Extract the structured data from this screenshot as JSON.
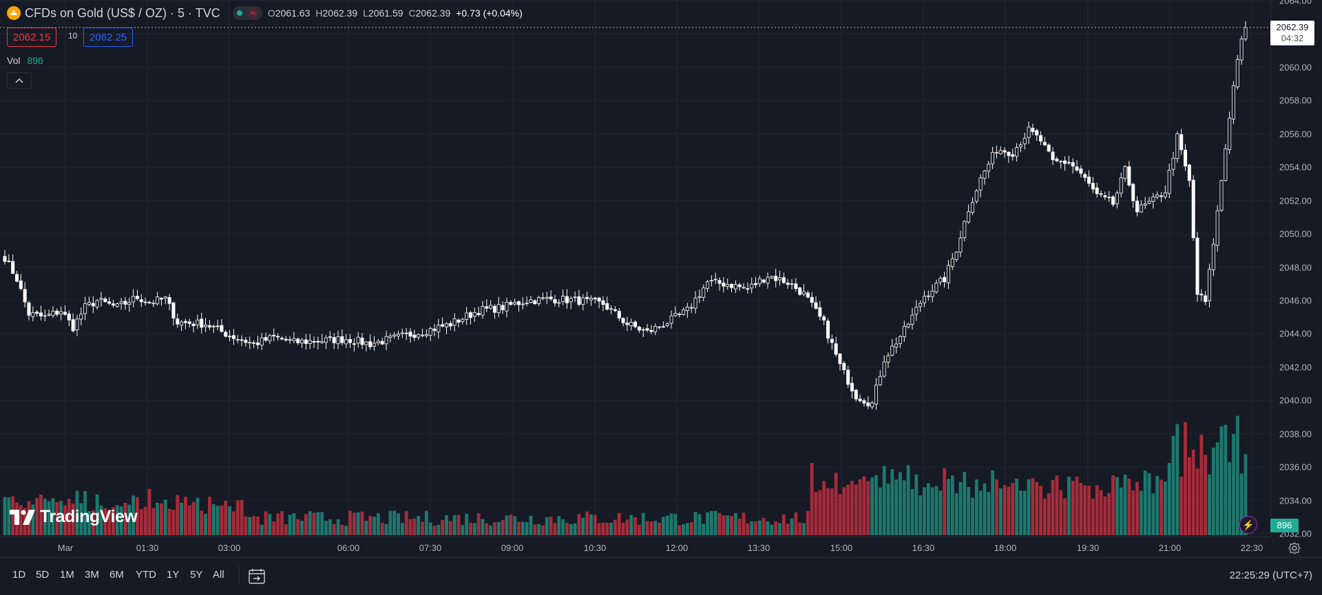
{
  "legend": {
    "symbol": "CFDs on Gold (US$ / OZ) · 5 · TVC",
    "open_label": "O",
    "open": "2061.63",
    "high_label": "H",
    "high": "2062.39",
    "low_label": "L",
    "low": "2061.59",
    "close_label": "C",
    "close": "2062.39",
    "change": "+0.73 (+0.04%)",
    "delay_icon": "≈"
  },
  "trade": {
    "sell": "2062.15",
    "spread": "10",
    "buy": "2062.25"
  },
  "volume_legend": {
    "name": "Vol",
    "value": "896"
  },
  "price_tag": {
    "price": "2062.39",
    "countdown": "04:32"
  },
  "volume_tag": "896",
  "logo_text": "TradingView",
  "price_axis": [
    "2064.00",
    "2062.00",
    "2060.00",
    "2058.00",
    "2056.00",
    "2054.00",
    "2052.00",
    "2050.00",
    "2048.00",
    "2046.00",
    "2044.00",
    "2042.00",
    "2040.00",
    "2038.00",
    "2036.00",
    "2034.00",
    "2032.00"
  ],
  "time_axis": [
    "Mar",
    "01:30",
    "03:00",
    "06:00",
    "07:30",
    "09:00",
    "10:30",
    "12:00",
    "13:30",
    "15:00",
    "16:30",
    "18:00",
    "19:30",
    "21:00",
    "22:30"
  ],
  "range_buttons": [
    "1D",
    "5D",
    "1M",
    "3M",
    "6M",
    "YTD",
    "1Y",
    "5Y",
    "All"
  ],
  "clock": "22:25:29 (UTC+7)",
  "colors": {
    "up": "#22ab94",
    "down": "#f23645",
    "candle_up": "#161a25",
    "candle_down": "#ffffff",
    "wick": "#ffffff",
    "grid": "#232632"
  },
  "chart_data": {
    "type": "candlestick",
    "interval_minutes": 5,
    "ylim": [
      2032,
      2064
    ],
    "anchors": [
      [
        0,
        2048.6
      ],
      [
        3,
        2047.3
      ],
      [
        6,
        2045.2
      ],
      [
        10,
        2045.0
      ],
      [
        14,
        2045.4
      ],
      [
        17,
        2044.4
      ],
      [
        20,
        2045.6
      ],
      [
        23,
        2046.0
      ],
      [
        28,
        2045.6
      ],
      [
        33,
        2046.2
      ],
      [
        36,
        2045.9
      ],
      [
        40,
        2046.1
      ],
      [
        43,
        2044.7
      ],
      [
        50,
        2044.6
      ],
      [
        56,
        2043.9
      ],
      [
        62,
        2043.4
      ],
      [
        67,
        2043.8
      ],
      [
        72,
        2043.5
      ],
      [
        79,
        2043.6
      ],
      [
        85,
        2043.7
      ],
      [
        91,
        2043.4
      ],
      [
        98,
        2043.8
      ],
      [
        105,
        2044.2
      ],
      [
        111,
        2044.6
      ],
      [
        118,
        2045.4
      ],
      [
        124,
        2045.6
      ],
      [
        130,
        2046.0
      ],
      [
        136,
        2046.1
      ],
      [
        143,
        2046.0
      ],
      [
        149,
        2045.8
      ],
      [
        155,
        2044.6
      ],
      [
        160,
        2044.1
      ],
      [
        165,
        2044.7
      ],
      [
        170,
        2045.4
      ],
      [
        175,
        2047.1
      ],
      [
        180,
        2047.0
      ],
      [
        185,
        2046.7
      ],
      [
        190,
        2047.5
      ],
      [
        195,
        2047.1
      ],
      [
        199,
        2046.4
      ],
      [
        204,
        2044.6
      ],
      [
        208,
        2042.1
      ],
      [
        212,
        2040.3
      ],
      [
        216,
        2039.8
      ],
      [
        219,
        2042.5
      ],
      [
        224,
        2044.2
      ],
      [
        229,
        2046.3
      ],
      [
        234,
        2047.3
      ],
      [
        237,
        2049.1
      ],
      [
        240,
        2051.5
      ],
      [
        243,
        2053.3
      ],
      [
        247,
        2055.1
      ],
      [
        251,
        2054.9
      ],
      [
        255,
        2056.2
      ],
      [
        258,
        2055.6
      ],
      [
        261,
        2054.3
      ],
      [
        265,
        2054.3
      ],
      [
        268,
        2053.6
      ],
      [
        272,
        2052.3
      ],
      [
        276,
        2051.8
      ],
      [
        279,
        2053.8
      ],
      [
        282,
        2051.4
      ],
      [
        286,
        2052.0
      ],
      [
        289,
        2052.6
      ],
      [
        292,
        2055.8
      ],
      [
        295,
        2053.1
      ],
      [
        297,
        2046.4
      ],
      [
        299,
        2045.9
      ],
      [
        302,
        2051.3
      ],
      [
        305,
        2057.1
      ],
      [
        307,
        2060.6
      ],
      [
        309,
        2062.39
      ]
    ]
  }
}
